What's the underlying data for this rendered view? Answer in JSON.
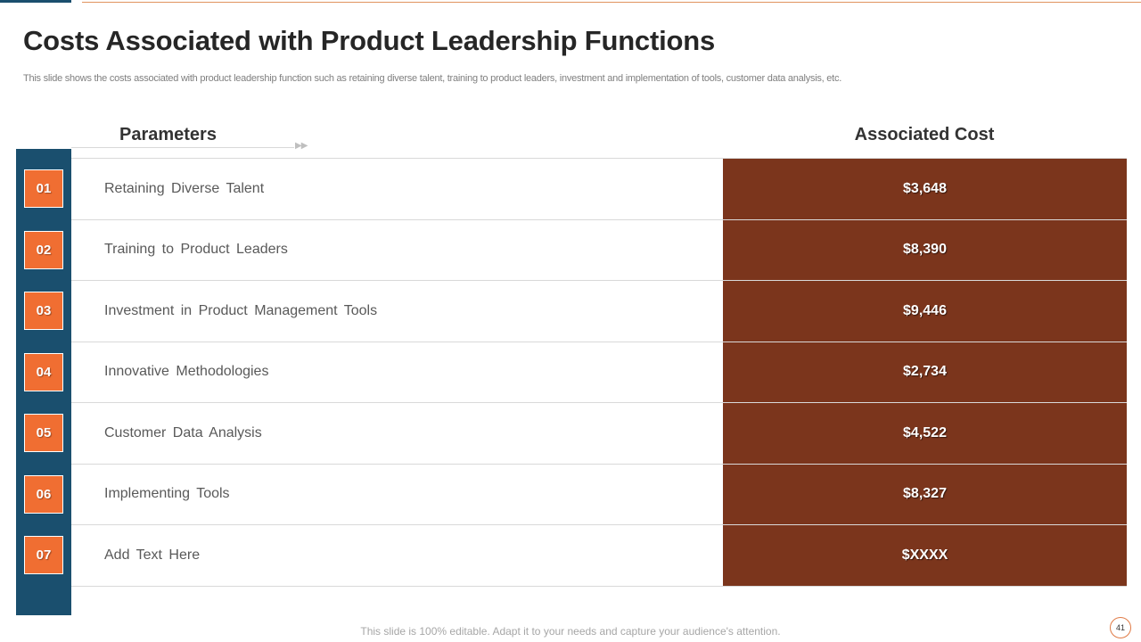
{
  "slide": {
    "title": "Costs Associated with Product  Leadership Functions",
    "subtitle": "This slide shows the costs associated with product leadership function such as retaining diverse talent, training to product leaders, investment and implementation of tools, customer data analysis, etc.",
    "footer": "This slide is 100% editable. Adapt it to your needs and capture your audience's attention.",
    "page_number": "41"
  },
  "table": {
    "header_parameters": "Parameters",
    "header_cost": "Associated Cost",
    "header_arrows": "▶▶",
    "rows": [
      {
        "num": "01",
        "label": "Retaining  Diverse  Talent",
        "cost": "$3,648"
      },
      {
        "num": "02",
        "label": "Training  to  Product  Leaders",
        "cost": "$8,390"
      },
      {
        "num": "03",
        "label": "Investment  in  Product  Management  Tools",
        "cost": "$9,446"
      },
      {
        "num": "04",
        "label": "Innovative  Methodologies",
        "cost": "$2,734"
      },
      {
        "num": "05",
        "label": "Customer  Data  Analysis",
        "cost": "$4,522"
      },
      {
        "num": "06",
        "label": "Implementing  Tools",
        "cost": "$8,327"
      },
      {
        "num": "07",
        "label": "Add  Text  Here",
        "cost": "$XXXX"
      }
    ]
  },
  "colors": {
    "sidebar": "#1a4f6e",
    "number_box": "#f06e32",
    "cost_fill": "#7b351c",
    "accent_line": "#e0935f"
  }
}
